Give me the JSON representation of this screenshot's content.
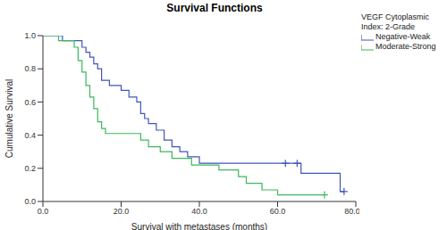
{
  "chart_data": {
    "type": "line",
    "title": "Survival Functions",
    "x_label": "Survival with metastases (months)",
    "y_label": "Cumulative Survival",
    "legend_title": "VEGF Cytoplasmic Index: 2-Grade",
    "legend": "upper right",
    "line_style": "step",
    "xlim": [
      0,
      80
    ],
    "xticks": [
      {
        "value": 0,
        "label": "0.0"
      },
      {
        "value": 20,
        "label": "20.0"
      },
      {
        "value": 40,
        "label": "40.0"
      },
      {
        "value": 60,
        "label": "60.0"
      },
      {
        "value": 80,
        "label": "80.0"
      }
    ],
    "ylim": [
      0,
      1
    ],
    "yticks": [
      {
        "value": 0,
        "label": "0.0"
      },
      {
        "value": 0.2,
        "label": "0.2"
      },
      {
        "value": 0.4,
        "label": "0.4"
      },
      {
        "value": 0.6,
        "label": "0.6"
      },
      {
        "value": 0.8,
        "label": "0.8"
      },
      {
        "value": 1,
        "label": "1.0"
      }
    ],
    "series": [
      {
        "name": "Negative-Weak",
        "color": "#4055b8",
        "x": [
          0,
          5,
          10,
          11,
          12,
          13,
          14,
          15,
          17,
          20,
          22,
          24,
          25,
          26,
          27,
          29,
          31,
          33,
          35,
          37,
          40,
          66,
          76,
          77
        ],
        "values": [
          1.0,
          0.97,
          0.93,
          0.9,
          0.87,
          0.83,
          0.8,
          0.73,
          0.7,
          0.67,
          0.63,
          0.6,
          0.53,
          0.5,
          0.47,
          0.43,
          0.37,
          0.33,
          0.3,
          0.27,
          0.23,
          0.17,
          0.06,
          0.06
        ],
        "censored": {
          "x": [
            62,
            65,
            77
          ],
          "values": [
            0.23,
            0.23,
            0.06
          ]
        }
      },
      {
        "name": "Moderate-Strong",
        "color": "#3cb85c",
        "x": [
          0,
          4,
          8,
          9,
          10,
          11,
          12,
          13,
          14,
          15,
          16,
          25,
          27,
          30,
          33,
          38,
          45,
          50,
          52,
          56,
          60,
          72
        ],
        "values": [
          1.0,
          0.97,
          0.93,
          0.85,
          0.78,
          0.7,
          0.63,
          0.56,
          0.48,
          0.44,
          0.41,
          0.37,
          0.33,
          0.3,
          0.26,
          0.22,
          0.19,
          0.15,
          0.11,
          0.07,
          0.04,
          0.04
        ],
        "censored": {
          "x": [
            72
          ],
          "values": [
            0.04
          ]
        }
      }
    ]
  }
}
